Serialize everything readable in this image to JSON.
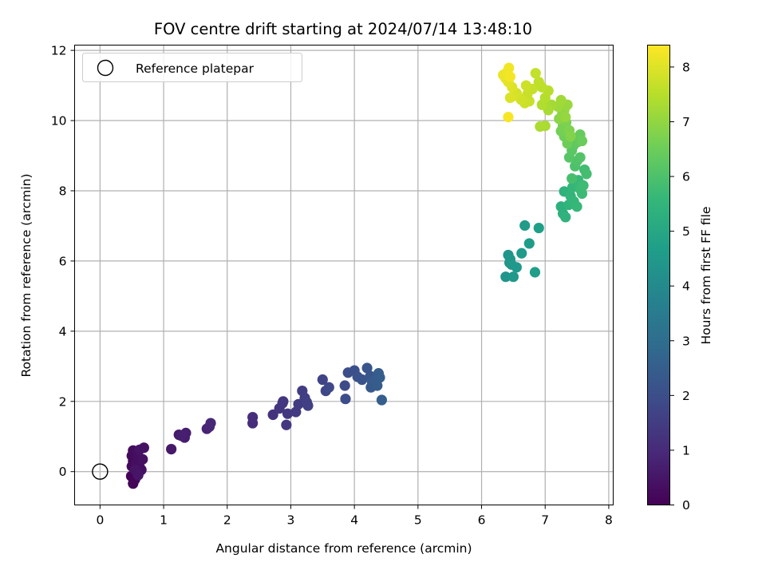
{
  "chart_data": {
    "type": "scatter",
    "title": "FOV centre drift starting at 2024/07/14 13:48:10",
    "xlabel": "Angular distance from reference (arcmin)",
    "ylabel": "Rotation from reference (arcmin)",
    "xlim": [
      -0.4,
      8.07
    ],
    "ylim": [
      -0.95,
      12.15
    ],
    "xticks": [
      0,
      1,
      2,
      3,
      4,
      5,
      6,
      7,
      8
    ],
    "yticks": [
      0,
      2,
      4,
      6,
      8,
      10,
      12
    ],
    "grid": true,
    "legend": {
      "placement": "top-left",
      "entries": [
        "Reference platepar"
      ]
    },
    "reference_point": {
      "x": 0,
      "y": 0,
      "label": "Reference platepar"
    },
    "colorbar": {
      "label": "Hours from first FF file",
      "range": [
        0,
        8.4
      ],
      "ticks": [
        0,
        1,
        2,
        3,
        4,
        5,
        6,
        7,
        8
      ],
      "colormap": "viridis",
      "colors": [
        "#440154",
        "#482878",
        "#3e4a89",
        "#31688e",
        "#26828e",
        "#1f9e89",
        "#35b779",
        "#6ece58",
        "#b5de2b",
        "#fde725"
      ]
    },
    "points": [
      {
        "x": 0.49,
        "y": -0.13,
        "c": 0.05
      },
      {
        "x": 0.52,
        "y": -0.34,
        "c": 0.08
      },
      {
        "x": 0.55,
        "y": -0.22,
        "c": 0.1
      },
      {
        "x": 0.6,
        "y": -0.05,
        "c": 0.12
      },
      {
        "x": 0.63,
        "y": 0.1,
        "c": 0.15
      },
      {
        "x": 0.5,
        "y": 0.15,
        "c": 0.18
      },
      {
        "x": 0.52,
        "y": 0.3,
        "c": 0.2
      },
      {
        "x": 0.5,
        "y": 0.45,
        "c": 0.22
      },
      {
        "x": 0.52,
        "y": 0.6,
        "c": 0.25
      },
      {
        "x": 0.58,
        "y": 0.55,
        "c": 0.28
      },
      {
        "x": 0.6,
        "y": 0.4,
        "c": 0.3
      },
      {
        "x": 0.57,
        "y": 0.22,
        "c": 0.32
      },
      {
        "x": 0.65,
        "y": 0.05,
        "c": 0.35
      },
      {
        "x": 0.67,
        "y": 0.35,
        "c": 0.38
      },
      {
        "x": 0.69,
        "y": 0.68,
        "c": 0.4
      },
      {
        "x": 0.62,
        "y": 0.62,
        "c": 0.42
      },
      {
        "x": 0.55,
        "y": 0.05,
        "c": 0.45
      },
      {
        "x": 0.6,
        "y": -0.1,
        "c": 0.48
      },
      {
        "x": 1.12,
        "y": 0.64,
        "c": 0.55
      },
      {
        "x": 1.24,
        "y": 1.05,
        "c": 0.6
      },
      {
        "x": 1.33,
        "y": 0.97,
        "c": 0.65
      },
      {
        "x": 1.35,
        "y": 1.1,
        "c": 0.7
      },
      {
        "x": 1.28,
        "y": 1.02,
        "c": 0.72
      },
      {
        "x": 1.68,
        "y": 1.22,
        "c": 0.8
      },
      {
        "x": 1.72,
        "y": 1.28,
        "c": 0.85
      },
      {
        "x": 1.74,
        "y": 1.38,
        "c": 0.9
      },
      {
        "x": 2.4,
        "y": 1.38,
        "c": 1.05
      },
      {
        "x": 2.4,
        "y": 1.55,
        "c": 1.1
      },
      {
        "x": 2.72,
        "y": 1.62,
        "c": 1.2
      },
      {
        "x": 2.82,
        "y": 1.8,
        "c": 1.25
      },
      {
        "x": 2.87,
        "y": 1.95,
        "c": 1.3
      },
      {
        "x": 2.88,
        "y": 2.0,
        "c": 1.32
      },
      {
        "x": 2.93,
        "y": 1.33,
        "c": 1.35
      },
      {
        "x": 2.95,
        "y": 1.65,
        "c": 1.38
      },
      {
        "x": 3.08,
        "y": 1.7,
        "c": 1.42
      },
      {
        "x": 3.12,
        "y": 1.92,
        "c": 1.45
      },
      {
        "x": 3.18,
        "y": 2.3,
        "c": 1.5
      },
      {
        "x": 3.22,
        "y": 2.1,
        "c": 1.55
      },
      {
        "x": 3.25,
        "y": 1.98,
        "c": 1.58
      },
      {
        "x": 3.27,
        "y": 1.88,
        "c": 1.6
      },
      {
        "x": 3.5,
        "y": 2.62,
        "c": 1.7
      },
      {
        "x": 3.55,
        "y": 2.3,
        "c": 1.75
      },
      {
        "x": 3.6,
        "y": 2.4,
        "c": 1.8
      },
      {
        "x": 3.85,
        "y": 2.45,
        "c": 1.9
      },
      {
        "x": 3.86,
        "y": 2.07,
        "c": 1.95
      },
      {
        "x": 3.9,
        "y": 2.82,
        "c": 2.0
      },
      {
        "x": 4.0,
        "y": 2.88,
        "c": 2.05
      },
      {
        "x": 4.05,
        "y": 2.7,
        "c": 2.1
      },
      {
        "x": 4.12,
        "y": 2.62,
        "c": 2.15
      },
      {
        "x": 4.2,
        "y": 2.95,
        "c": 2.2
      },
      {
        "x": 4.25,
        "y": 2.72,
        "c": 2.25
      },
      {
        "x": 4.26,
        "y": 2.4,
        "c": 2.3
      },
      {
        "x": 4.28,
        "y": 2.55,
        "c": 2.35
      },
      {
        "x": 4.33,
        "y": 2.6,
        "c": 2.4
      },
      {
        "x": 4.36,
        "y": 2.45,
        "c": 2.42
      },
      {
        "x": 4.38,
        "y": 2.8,
        "c": 2.45
      },
      {
        "x": 4.4,
        "y": 2.68,
        "c": 2.48
      },
      {
        "x": 4.43,
        "y": 2.04,
        "c": 2.5
      },
      {
        "x": 6.38,
        "y": 5.55,
        "c": 4.35
      },
      {
        "x": 6.42,
        "y": 6.17,
        "c": 4.38
      },
      {
        "x": 6.44,
        "y": 5.95,
        "c": 4.4
      },
      {
        "x": 6.45,
        "y": 6.05,
        "c": 4.42
      },
      {
        "x": 6.47,
        "y": 5.9,
        "c": 4.45
      },
      {
        "x": 6.5,
        "y": 5.55,
        "c": 4.48
      },
      {
        "x": 6.55,
        "y": 5.82,
        "c": 4.5
      },
      {
        "x": 6.63,
        "y": 6.22,
        "c": 4.55
      },
      {
        "x": 6.68,
        "y": 7.01,
        "c": 4.6
      },
      {
        "x": 6.75,
        "y": 6.5,
        "c": 4.62
      },
      {
        "x": 6.84,
        "y": 5.68,
        "c": 4.65
      },
      {
        "x": 6.9,
        "y": 6.94,
        "c": 4.7
      },
      {
        "x": 7.25,
        "y": 7.55,
        "c": 5.3
      },
      {
        "x": 7.28,
        "y": 7.35,
        "c": 5.35
      },
      {
        "x": 7.3,
        "y": 7.98,
        "c": 5.4
      },
      {
        "x": 7.32,
        "y": 7.25,
        "c": 5.42
      },
      {
        "x": 7.37,
        "y": 7.6,
        "c": 5.45
      },
      {
        "x": 7.4,
        "y": 7.85,
        "c": 5.5
      },
      {
        "x": 7.43,
        "y": 8.1,
        "c": 5.55
      },
      {
        "x": 7.45,
        "y": 7.7,
        "c": 5.58
      },
      {
        "x": 7.5,
        "y": 7.55,
        "c": 5.62
      },
      {
        "x": 7.52,
        "y": 8.3,
        "c": 5.65
      },
      {
        "x": 7.55,
        "y": 8.05,
        "c": 5.7
      },
      {
        "x": 7.58,
        "y": 7.92,
        "c": 5.72
      },
      {
        "x": 7.6,
        "y": 8.15,
        "c": 5.75
      },
      {
        "x": 7.62,
        "y": 8.6,
        "c": 5.8
      },
      {
        "x": 7.65,
        "y": 8.48,
        "c": 5.85
      },
      {
        "x": 7.42,
        "y": 8.35,
        "c": 5.9
      },
      {
        "x": 7.47,
        "y": 8.7,
        "c": 6.0
      },
      {
        "x": 7.5,
        "y": 8.85,
        "c": 6.05
      },
      {
        "x": 7.55,
        "y": 8.95,
        "c": 6.1
      },
      {
        "x": 7.38,
        "y": 8.95,
        "c": 6.15
      },
      {
        "x": 7.42,
        "y": 9.15,
        "c": 6.2
      },
      {
        "x": 7.45,
        "y": 9.3,
        "c": 6.25
      },
      {
        "x": 7.48,
        "y": 9.5,
        "c": 6.3
      },
      {
        "x": 7.52,
        "y": 9.4,
        "c": 6.35
      },
      {
        "x": 7.55,
        "y": 9.6,
        "c": 6.4
      },
      {
        "x": 7.58,
        "y": 9.42,
        "c": 6.45
      },
      {
        "x": 7.35,
        "y": 9.35,
        "c": 6.5
      },
      {
        "x": 7.3,
        "y": 9.55,
        "c": 6.55
      },
      {
        "x": 7.25,
        "y": 9.7,
        "c": 6.6
      },
      {
        "x": 7.28,
        "y": 9.85,
        "c": 6.65
      },
      {
        "x": 7.33,
        "y": 9.95,
        "c": 6.7
      },
      {
        "x": 7.38,
        "y": 9.72,
        "c": 6.75
      },
      {
        "x": 7.4,
        "y": 9.55,
        "c": 6.8
      },
      {
        "x": 7.22,
        "y": 10.05,
        "c": 6.9
      },
      {
        "x": 7.27,
        "y": 10.2,
        "c": 6.95
      },
      {
        "x": 7.3,
        "y": 10.3,
        "c": 7.0
      },
      {
        "x": 7.32,
        "y": 10.1,
        "c": 7.05
      },
      {
        "x": 7.35,
        "y": 10.45,
        "c": 7.1
      },
      {
        "x": 7.2,
        "y": 10.4,
        "c": 7.15
      },
      {
        "x": 7.25,
        "y": 10.58,
        "c": 7.2
      },
      {
        "x": 7.1,
        "y": 10.45,
        "c": 7.25
      },
      {
        "x": 7.05,
        "y": 10.3,
        "c": 7.3
      },
      {
        "x": 7.0,
        "y": 9.85,
        "c": 7.32
      },
      {
        "x": 6.92,
        "y": 9.83,
        "c": 7.35
      },
      {
        "x": 6.95,
        "y": 10.45,
        "c": 7.4
      },
      {
        "x": 7.0,
        "y": 10.65,
        "c": 7.45
      },
      {
        "x": 7.05,
        "y": 10.85,
        "c": 7.5
      },
      {
        "x": 6.95,
        "y": 10.95,
        "c": 7.55
      },
      {
        "x": 6.9,
        "y": 11.1,
        "c": 7.6
      },
      {
        "x": 6.85,
        "y": 11.35,
        "c": 7.65
      },
      {
        "x": 6.8,
        "y": 10.9,
        "c": 7.68
      },
      {
        "x": 6.75,
        "y": 10.55,
        "c": 7.7
      },
      {
        "x": 6.72,
        "y": 10.75,
        "c": 7.72
      },
      {
        "x": 6.68,
        "y": 10.5,
        "c": 7.75
      },
      {
        "x": 6.7,
        "y": 11.0,
        "c": 7.78
      },
      {
        "x": 6.62,
        "y": 10.6,
        "c": 7.82
      },
      {
        "x": 6.55,
        "y": 10.78,
        "c": 7.85
      },
      {
        "x": 6.5,
        "y": 10.7,
        "c": 7.9
      },
      {
        "x": 6.45,
        "y": 10.65,
        "c": 7.95
      },
      {
        "x": 6.48,
        "y": 10.95,
        "c": 8.0
      },
      {
        "x": 6.42,
        "y": 11.1,
        "c": 8.05
      },
      {
        "x": 6.38,
        "y": 11.2,
        "c": 8.1
      },
      {
        "x": 6.34,
        "y": 11.3,
        "c": 8.15
      },
      {
        "x": 6.4,
        "y": 11.38,
        "c": 8.2
      },
      {
        "x": 6.43,
        "y": 11.5,
        "c": 8.25
      },
      {
        "x": 6.45,
        "y": 11.25,
        "c": 8.28
      },
      {
        "x": 6.42,
        "y": 10.1,
        "c": 8.32
      }
    ]
  }
}
